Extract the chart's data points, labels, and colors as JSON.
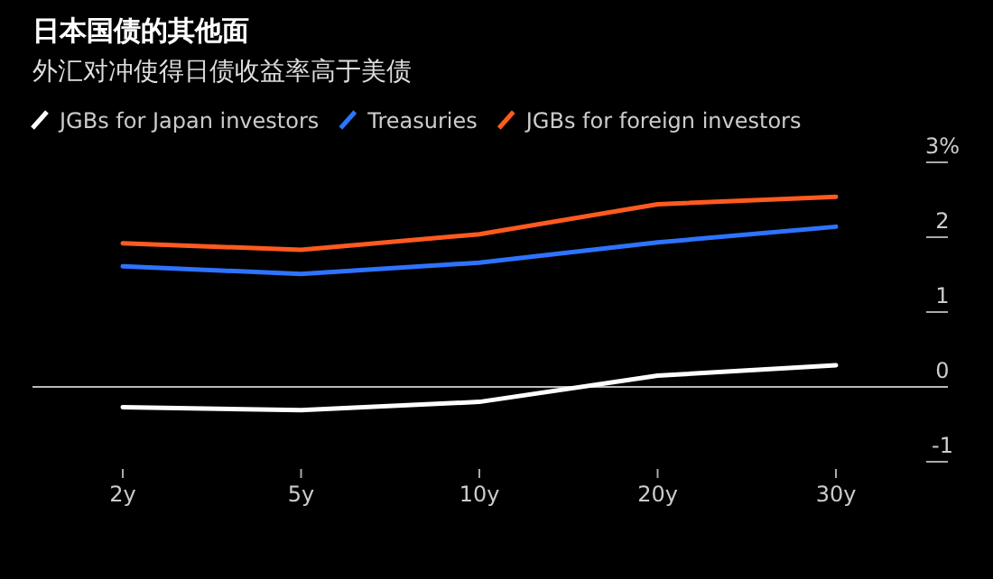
{
  "chart_data": {
    "type": "line",
    "title": "日本国债的其他面",
    "subtitle": "外汇对冲使得日债收益率高于美债",
    "categories": [
      "2y",
      "5y",
      "10y",
      "20y",
      "30y"
    ],
    "series": [
      {
        "name": "JGBs for Japan investors",
        "color": "#ffffff",
        "values": [
          -0.27,
          -0.31,
          -0.2,
          0.15,
          0.29
        ]
      },
      {
        "name": "Treasuries",
        "color": "#2e73ff",
        "values": [
          1.61,
          1.51,
          1.66,
          1.93,
          2.14
        ]
      },
      {
        "name": "JGBs for foreign investors",
        "color": "#ff5a1f",
        "values": [
          1.92,
          1.83,
          2.04,
          2.44,
          2.54
        ]
      }
    ],
    "ylim": [
      -1,
      3
    ],
    "yticks": [
      -1,
      0,
      1,
      2,
      {
        "value": 3,
        "label": "3%"
      }
    ],
    "ref_lines": [
      {
        "axis": "y",
        "value": 0,
        "color": "#bbbbbb"
      }
    ],
    "legend": "top",
    "marker": "none",
    "line_style": "solid"
  }
}
